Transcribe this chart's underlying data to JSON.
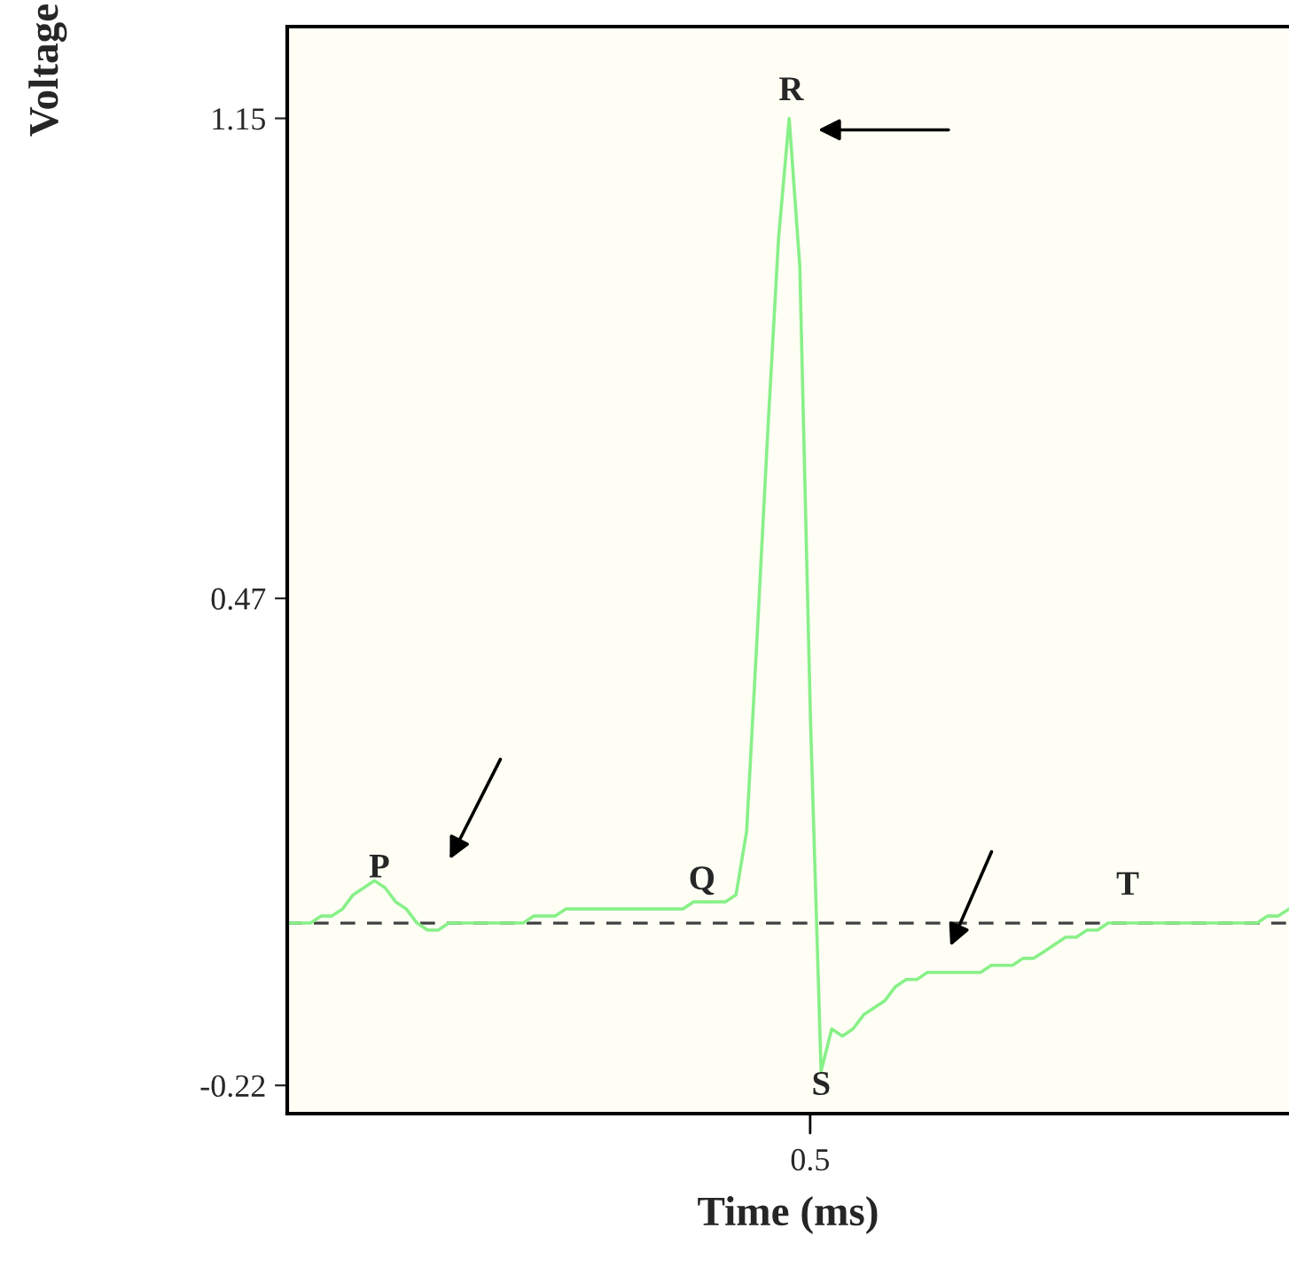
{
  "chart_data": {
    "type": "line",
    "xlabel": "Time (ms)",
    "ylabel": "Voltage",
    "categories": [
      null,
      null,
      null,
      null,
      null,
      null,
      null,
      null,
      null,
      null,
      null,
      null,
      null,
      null,
      null,
      null,
      null,
      null,
      null,
      null,
      null,
      null,
      null,
      null,
      null,
      null,
      null,
      null,
      null,
      null,
      null,
      null,
      null,
      null,
      null,
      null,
      null,
      null,
      null,
      null,
      null,
      null,
      null,
      null,
      null,
      null,
      null,
      null,
      null,
      null,
      null,
      null,
      null,
      null,
      null,
      null,
      null,
      null,
      null,
      null,
      null,
      null,
      null,
      null,
      null,
      null,
      null,
      null,
      null,
      null,
      null,
      null,
      null,
      null,
      null,
      null,
      null,
      null,
      null,
      null,
      null,
      null,
      null,
      null,
      null,
      null,
      null,
      null,
      null,
      null,
      null,
      null,
      null,
      null,
      null
    ],
    "series": [
      {
        "color": "#88f088",
        "values": [
          0.01,
          0.01,
          0.01,
          0.02,
          0.02,
          0.03,
          0.05,
          0.06,
          0.07,
          0.06,
          0.04,
          0.03,
          0.01,
          0.0,
          0.0,
          0.01,
          0.01,
          0.01,
          0.01,
          0.01,
          0.01,
          0.01,
          0.01,
          0.02,
          0.02,
          0.02,
          0.03,
          0.03,
          0.03,
          0.03,
          0.03,
          0.03,
          0.03,
          0.03,
          0.03,
          0.03,
          0.03,
          0.03,
          0.04,
          0.04,
          0.04,
          0.04,
          0.05,
          0.14,
          0.42,
          0.71,
          0.98,
          1.15,
          0.94,
          0.3,
          -0.2,
          -0.14,
          -0.15,
          -0.14,
          -0.12,
          -0.11,
          -0.1,
          -0.08,
          -0.07,
          -0.07,
          -0.06,
          -0.06,
          -0.06,
          -0.06,
          -0.06,
          -0.06,
          -0.05,
          -0.05,
          -0.05,
          -0.04,
          -0.04,
          -0.03,
          -0.02,
          -0.01,
          -0.01,
          0.0,
          0.0,
          0.01,
          0.01,
          0.01,
          0.01,
          0.01,
          0.01,
          0.01,
          0.01,
          0.01,
          0.01,
          0.01,
          0.01,
          0.01,
          0.01,
          0.01,
          0.02,
          0.02,
          0.03
        ]
      }
    ],
    "ylim": [
      -0.26,
      1.28
    ],
    "yticks": [
      -0.22,
      0.47,
      1.15
    ],
    "ref_lines": [
      {
        "axis": "y",
        "value": 0.01,
        "color": "#404040",
        "line_style": "dashed"
      }
    ],
    "annotations": [
      "P",
      "Q",
      "R",
      "S",
      "T",
      "0.5"
    ],
    "grid": false,
    "line_style": "solid"
  }
}
